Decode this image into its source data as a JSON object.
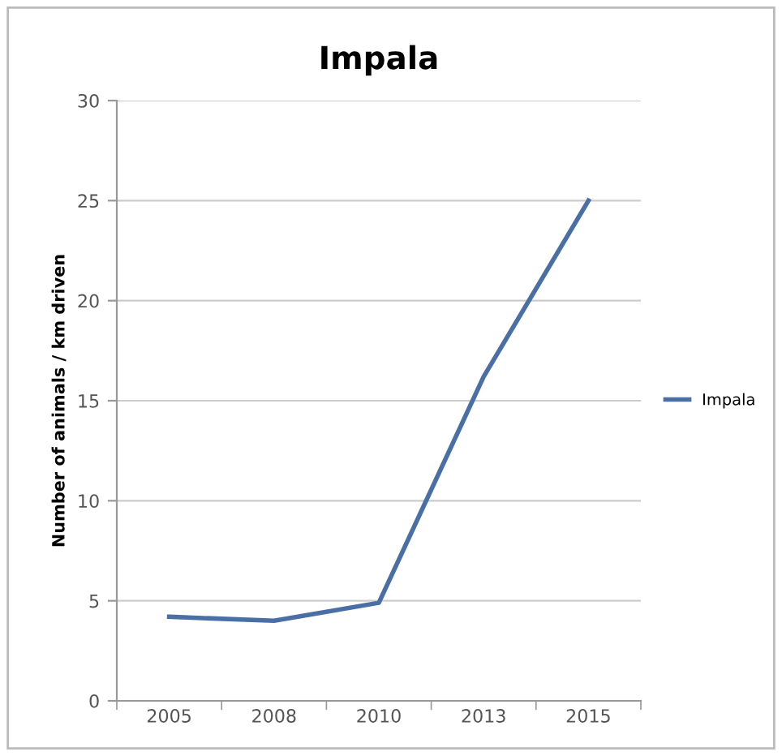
{
  "chart_data": {
    "type": "line",
    "title": "Impala",
    "ylabel": "Number of animals / km driven",
    "categories": [
      "2005",
      "2008",
      "2010",
      "2013",
      "2015"
    ],
    "series": [
      {
        "name": "Impala",
        "color": "#4a6fa5",
        "values": [
          4.2,
          4.0,
          4.9,
          16.2,
          25
        ]
      }
    ],
    "ylim": [
      0,
      30
    ],
    "yticks": [
      0,
      5,
      10,
      15,
      20,
      25,
      30
    ],
    "grid": "y",
    "legend": "right",
    "marker": "none",
    "line_style": "solid"
  }
}
